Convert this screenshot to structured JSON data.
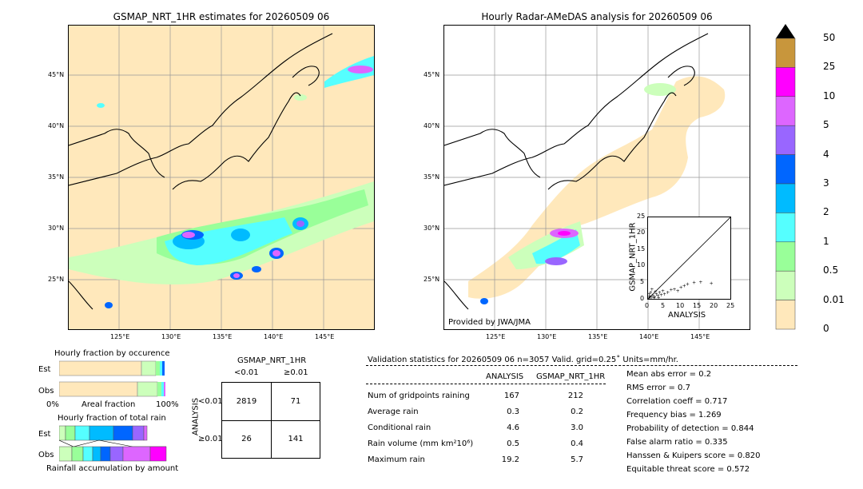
{
  "left_map": {
    "title": "GSMAP_NRT_1HR estimates for 20260509 06",
    "lon_labels": [
      "125°E",
      "130°E",
      "135°E",
      "140°E",
      "145°E"
    ],
    "lat_labels": [
      "45°N",
      "40°N",
      "35°N",
      "30°N",
      "25°N"
    ]
  },
  "right_map": {
    "title": "Hourly Radar-AMeDAS analysis for 20260509 06",
    "lon_labels": [
      "125°E",
      "130°E",
      "135°E",
      "140°E",
      "145°E"
    ],
    "lat_labels": [
      "45°N",
      "40°N",
      "35°N",
      "30°N",
      "25°N"
    ],
    "credit": "Provided by JWA/JMA"
  },
  "colorbar": {
    "labels": [
      "50",
      "25",
      "10",
      "5",
      "4",
      "3",
      "2",
      "1",
      "0.5",
      "0.01",
      "0"
    ],
    "colors": [
      "#c8963c",
      "#ff00ff",
      "#dd66ff",
      "#9966ff",
      "#0066ff",
      "#00bbff",
      "#55ffff",
      "#99ff99",
      "#ccffbb",
      "#ffe8bb"
    ]
  },
  "scatter": {
    "xlabel": "ANALYSIS",
    "ylabel": "GSMAP_NRT_1HR",
    "ticks": [
      "0",
      "5",
      "10",
      "15",
      "20",
      "25"
    ],
    "xlim": [
      0,
      25
    ],
    "ylim": [
      0,
      25
    ]
  },
  "fraction_occurrence": {
    "title": "Hourly fraction by occurence",
    "rows": [
      "Est",
      "Obs"
    ],
    "axis_left": "0%",
    "axis_mid": "Areal fraction",
    "axis_right": "100%"
  },
  "fraction_amount": {
    "title": "Hourly fraction of total rain",
    "rows": [
      "Est",
      "Obs"
    ],
    "footer": "Rainfall accumulation by amount"
  },
  "contingency": {
    "title": "GSMAP_NRT_1HR",
    "col_lt": "<0.01",
    "col_ge": "≥0.01",
    "row_title": "ANALYSIS",
    "row_lt": "<0.01",
    "row_ge": "≥0.01",
    "a": "2819",
    "b": "71",
    "c": "26",
    "d": "141"
  },
  "validation": {
    "header": "Validation statistics for 20260509 06  n=3057 Valid. grid=0.25˚ Units=mm/hr.",
    "col_analysis": "ANALYSIS",
    "col_gsmap": "GSMAP_NRT_1HR",
    "rows": [
      {
        "label": "Num of gridpoints raining",
        "analysis": "167",
        "gsmap": "212"
      },
      {
        "label": "Average rain",
        "analysis": "0.3",
        "gsmap": "0.2"
      },
      {
        "label": "Conditional rain",
        "analysis": "4.6",
        "gsmap": "3.0"
      },
      {
        "label": "Rain volume (mm km²10⁶)",
        "analysis": "0.5",
        "gsmap": "0.4"
      },
      {
        "label": "Maximum rain",
        "analysis": "19.2",
        "gsmap": "5.7"
      }
    ],
    "scores": [
      "Mean abs error =    0.2",
      "RMS error =    0.7",
      "Correlation coeff =  0.717",
      "Frequency bias =  1.269",
      "Probability of detection =  0.844",
      "False alarm ratio =  0.335",
      "Hanssen & Kuipers score =  0.820",
      "Equitable threat score =  0.572"
    ]
  }
}
